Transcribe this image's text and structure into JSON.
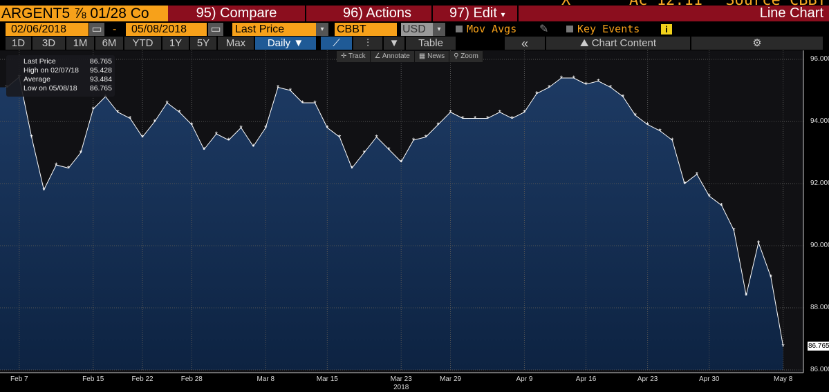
{
  "top_strip": {
    "time_partial": "Ac 12:11",
    "x_partial": "X",
    "source_partial": "Source CBBT"
  },
  "header": {
    "ticker": "ARGENT5 ⅞ 01/28 Co",
    "compare": "95) Compare",
    "actions": "96) Actions",
    "edit": "97) Edit",
    "chart_type": "Line Chart"
  },
  "controls": {
    "start_date": "02/06/2018",
    "dash": "-",
    "end_date": "05/08/2018",
    "field": "Last Price",
    "source": "CBBT",
    "currency": "USD",
    "mov_avgs": "Mov Avgs",
    "key_events": "Key Events",
    "info": "i"
  },
  "periods": [
    "1D",
    "3D",
    "1M",
    "6M",
    "YTD",
    "1Y",
    "5Y",
    "Max"
  ],
  "frequency": "Daily ▼",
  "toolbar": {
    "table": "Table",
    "collapse": "«",
    "chart_content": "Chart Content"
  },
  "chart_tools": [
    "Track",
    "Annotate",
    "News",
    "Zoom"
  ],
  "legend": {
    "rows": [
      {
        "label": "Last Price",
        "value": "86.765"
      },
      {
        "label": "High on 02/07/18",
        "value": "95.428"
      },
      {
        "label": "Average",
        "value": "93.484"
      },
      {
        "label": "Low on 05/08/18",
        "value": "86.765"
      }
    ]
  },
  "chart_data": {
    "type": "area",
    "title": "Line Chart",
    "ylim": [
      86,
      96
    ],
    "yticks": [
      "96.000",
      "94.000",
      "92.000",
      "90.000",
      "88.000",
      "86.000"
    ],
    "last_value_label": "86.765",
    "year_label": "2018",
    "xticks": [
      {
        "label": "Feb 7",
        "i": 1
      },
      {
        "label": "Feb 15",
        "i": 7
      },
      {
        "label": "Feb 22",
        "i": 11
      },
      {
        "label": "Feb 28",
        "i": 15
      },
      {
        "label": "Mar 8",
        "i": 21
      },
      {
        "label": "Mar 15",
        "i": 26
      },
      {
        "label": "Mar 23",
        "i": 32
      },
      {
        "label": "Mar 29",
        "i": 36
      },
      {
        "label": "Apr 9",
        "i": 42
      },
      {
        "label": "Apr 16",
        "i": 47
      },
      {
        "label": "Apr 23",
        "i": 52
      },
      {
        "label": "Apr 30",
        "i": 57
      },
      {
        "label": "May 8",
        "i": 63
      }
    ],
    "values": [
      95.1,
      95.43,
      93.5,
      91.8,
      92.6,
      92.5,
      93.0,
      94.4,
      94.8,
      94.3,
      94.1,
      93.5,
      94.0,
      94.6,
      94.3,
      93.9,
      93.1,
      93.6,
      93.4,
      93.8,
      93.2,
      93.8,
      95.1,
      95.0,
      94.6,
      94.6,
      93.8,
      93.5,
      92.5,
      93.0,
      93.5,
      93.1,
      92.7,
      93.4,
      93.5,
      93.9,
      94.3,
      94.1,
      94.1,
      94.1,
      94.3,
      94.1,
      94.3,
      94.9,
      95.1,
      95.4,
      95.4,
      95.2,
      95.3,
      95.1,
      94.8,
      94.2,
      93.9,
      93.7,
      93.4,
      92.0,
      92.3,
      91.6,
      91.3,
      90.5,
      88.4,
      90.1,
      89.0,
      86.765
    ]
  }
}
